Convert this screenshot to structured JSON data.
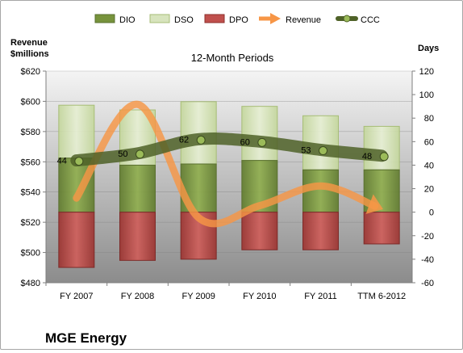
{
  "chart_data": {
    "type": "bar",
    "title": "12-Month Periods",
    "company": "MGE Energy",
    "categories": [
      "FY 2007",
      "FY 2008",
      "FY 2009",
      "FY 2010",
      "FY 2011",
      "TTM 6-2012"
    ],
    "left_axis": {
      "label_line1": "Revenue",
      "label_line2": "$millions",
      "ticks": [
        "$480",
        "$500",
        "$520",
        "$540",
        "$560",
        "$580",
        "$600",
        "$620"
      ],
      "ylim": [
        480,
        620
      ]
    },
    "right_axis": {
      "label": "Days",
      "ticks": [
        "-60",
        "-40",
        "-20",
        "0",
        "20",
        "40",
        "60",
        "80",
        "100",
        "120"
      ],
      "ylim": [
        -60,
        120
      ]
    },
    "legend": {
      "placement": "top",
      "items": [
        {
          "name": "DIO",
          "color": "#77933c"
        },
        {
          "name": "DSO",
          "color": "#d7e4bd"
        },
        {
          "name": "DPO",
          "color": "#c0504d"
        },
        {
          "name": "Revenue",
          "color": "#f79646"
        },
        {
          "name": "CCC",
          "color": "#4f6228"
        }
      ]
    },
    "series": [
      {
        "name": "DIO",
        "axis": "right",
        "values": [
          46,
          40,
          41,
          44,
          36,
          36
        ]
      },
      {
        "name": "DSO",
        "axis": "right",
        "values": [
          45,
          47,
          53,
          46,
          46,
          37
        ]
      },
      {
        "name": "DPO",
        "axis": "right",
        "values": [
          -47,
          -41,
          -40,
          -32,
          -32,
          -27
        ]
      },
      {
        "name": "Revenue",
        "axis": "left",
        "values": [
          536,
          598,
          523,
          531,
          544,
          529
        ]
      },
      {
        "name": "CCC",
        "axis": "right",
        "values": [
          44,
          50,
          62,
          60,
          53,
          48
        ],
        "labels": [
          "44",
          "50",
          "62",
          "60",
          "53",
          "48"
        ]
      }
    ],
    "colors": {
      "dio": "#77933c",
      "dso": "#d7e4bd",
      "dpo": "#c0504d",
      "revenue": "#f79646",
      "ccc": "#4f6228",
      "plot_top": "#f4f4f4",
      "plot_bottom": "#8c8c8c"
    }
  }
}
